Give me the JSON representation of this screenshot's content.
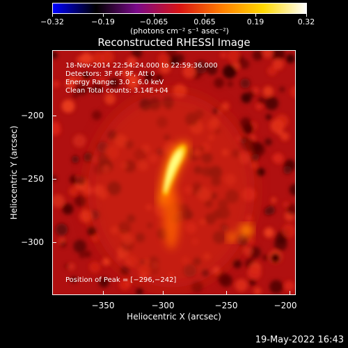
{
  "colorbar": {
    "labels": [
      "−0.32",
      "−0.19",
      "−0.065",
      "0.065",
      "0.19",
      "0.32"
    ],
    "units": "(photons cm⁻² s⁻¹ asec⁻²)"
  },
  "title": "Reconstructed RHESSI Image",
  "info": {
    "line1": "18-Nov-2014 22:54:24.000 to 22:59:36.000",
    "line2": "Detectors: 3F 6F 9F, Att 0",
    "line3": "Energy Range: 3.0 – 6.0 keV",
    "line4": "Clean    Total counts: 3.14E+04",
    "peak": "Position of Peak = [−296,−242]"
  },
  "axes": {
    "xlabel": "Heliocentric X (arcsec)",
    "ylabel": "Heliocentric Y (arcsec)",
    "xticks": [
      "−350",
      "−300",
      "−250",
      "−200"
    ],
    "yticks": [
      "−200",
      "−250",
      "−300"
    ]
  },
  "timestamp": "19-May-2022 16:43",
  "colors": {
    "colormap": [
      "#0000ff",
      "#000000",
      "#7a0a8a",
      "#d81414",
      "#ff8000",
      "#ffd800",
      "#ffffff"
    ]
  }
}
